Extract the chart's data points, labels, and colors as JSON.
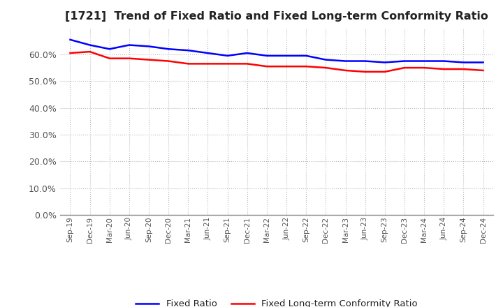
{
  "title": "[1721]  Trend of Fixed Ratio and Fixed Long-term Conformity Ratio",
  "labels": [
    "Sep-19",
    "Dec-19",
    "Mar-20",
    "Jun-20",
    "Sep-20",
    "Dec-20",
    "Mar-21",
    "Jun-21",
    "Sep-21",
    "Dec-21",
    "Mar-22",
    "Jun-22",
    "Sep-22",
    "Dec-22",
    "Mar-23",
    "Jun-23",
    "Sep-23",
    "Dec-23",
    "Mar-24",
    "Jun-24",
    "Sep-24",
    "Dec-24"
  ],
  "fixed_ratio": [
    65.5,
    63.5,
    62.0,
    63.5,
    63.0,
    62.0,
    61.5,
    60.5,
    59.5,
    60.5,
    59.5,
    59.5,
    59.5,
    58.0,
    57.5,
    57.5,
    57.0,
    57.5,
    57.5,
    57.5,
    57.0,
    57.0
  ],
  "fixed_lt_ratio": [
    60.5,
    61.0,
    58.5,
    58.5,
    58.0,
    57.5,
    56.5,
    56.5,
    56.5,
    56.5,
    55.5,
    55.5,
    55.5,
    55.0,
    54.0,
    53.5,
    53.5,
    55.0,
    55.0,
    54.5,
    54.5,
    54.0
  ],
  "fixed_ratio_color": "#0000FF",
  "fixed_lt_ratio_color": "#FF0000",
  "ylim": [
    0,
    70
  ],
  "yticks": [
    0,
    10,
    20,
    30,
    40,
    50,
    60
  ],
  "background_color": "#FFFFFF",
  "grid_color": "#AAAAAA",
  "legend_fixed_ratio": "Fixed Ratio",
  "legend_fixed_lt_ratio": "Fixed Long-term Conformity Ratio"
}
